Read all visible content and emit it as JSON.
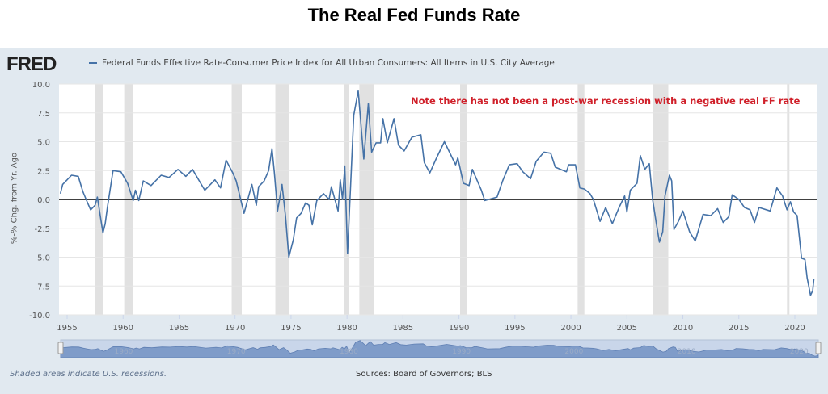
{
  "title": "The Real Fed Funds Rate",
  "logo": "FRED",
  "legend_label": "Federal Funds Effective Rate-Consumer Price Index for All Urban Consumers: All Items in U.S. City Average",
  "footer": {
    "recessions_note": "Shaded areas indicate U.S. recessions.",
    "sources": "Sources: Board of Governors; BLS"
  },
  "colors": {
    "series": "#4572a7",
    "annotation": "#d0202a",
    "recession": "#e1e1e1",
    "zero_line": "#000000",
    "panel": "#e1e9f0"
  },
  "chart_data": {
    "type": "line",
    "ylabel": "%-% Chg. from Yr. Ago",
    "ylim": [
      -10,
      10
    ],
    "yticks": [
      "10.0",
      "7.5",
      "5.0",
      "2.5",
      "0.0",
      "-2.5",
      "-5.0",
      "-7.5",
      "-10.0"
    ],
    "xticks": [
      "1955",
      "1960",
      "1965",
      "1970",
      "1975",
      "1980",
      "1985",
      "1990",
      "1995",
      "2000",
      "2005",
      "2010",
      "2015",
      "2020"
    ],
    "navigator_ticks": [
      "1960",
      "1970",
      "1980",
      "1990",
      "2000",
      "2010",
      "2020"
    ],
    "grid": true,
    "annotation": "Note there has not been a post-war recession with a negative real FF rate",
    "recessions": [
      [
        1957.5,
        1958.2
      ],
      [
        1960.1,
        1960.9
      ],
      [
        1969.7,
        1970.6
      ],
      [
        1973.6,
        1974.8
      ],
      [
        1979.7,
        1980.2
      ],
      [
        1981.1,
        1982.4
      ],
      [
        1990.1,
        1990.7
      ],
      [
        2000.6,
        2001.2
      ],
      [
        2007.3,
        2008.7
      ],
      [
        2019.3,
        2019.5
      ]
    ],
    "series": [
      {
        "name": "Federal Funds Effective Rate-Consumer Price Index for All Urban Consumers: All Items in U.S. City Average",
        "x": [
          1954.4,
          1954.6,
          1955.4,
          1956.0,
          1956.4,
          1956.7,
          1957.1,
          1957.5,
          1957.7,
          1958.2,
          1958.4,
          1958.6,
          1959.1,
          1959.8,
          1960.4,
          1960.9,
          1961.1,
          1961.4,
          1961.8,
          1962.5,
          1963.4,
          1964.1,
          1964.9,
          1965.6,
          1966.2,
          1967.3,
          1968.2,
          1968.7,
          1969.2,
          1969.8,
          1970.1,
          1970.8,
          1971.5,
          1971.9,
          1972.1,
          1972.6,
          1973.0,
          1973.3,
          1973.5,
          1973.8,
          1974.2,
          1974.5,
          1974.8,
          1975.2,
          1975.5,
          1975.9,
          1976.3,
          1976.6,
          1976.9,
          1977.3,
          1977.9,
          1978.4,
          1978.6,
          1979.2,
          1979.4,
          1979.6,
          1979.8,
          1980.05,
          1980.6,
          1981.0,
          1981.5,
          1981.9,
          1982.2,
          1982.6,
          1983.0,
          1983.2,
          1983.6,
          1984.2,
          1984.6,
          1985.1,
          1985.8,
          1986.6,
          1986.9,
          1987.4,
          1988.0,
          1988.7,
          1989.7,
          1989.9,
          1990.4,
          1990.9,
          1991.2,
          1992.0,
          1992.3,
          1993.4,
          1993.9,
          1994.5,
          1995.2,
          1995.7,
          1996.4,
          1996.9,
          1997.6,
          1998.2,
          1998.6,
          1999.6,
          1999.8,
          2000.4,
          2000.8,
          2001.2,
          2001.7,
          2002.0,
          2002.6,
          2003.1,
          2003.7,
          2004.3,
          2004.8,
          2005.0,
          2005.3,
          2005.9,
          2006.2,
          2006.6,
          2007.0,
          2007.3,
          2007.6,
          2007.9,
          2008.2,
          2008.4,
          2008.8,
          2009.0,
          2009.2,
          2009.6,
          2010.0,
          2010.6,
          2011.1,
          2011.8,
          2012.5,
          2013.1,
          2013.6,
          2014.1,
          2014.4,
          2015.0,
          2015.5,
          2016.0,
          2016.4,
          2016.8,
          2017.8,
          2018.4,
          2018.9,
          2019.3,
          2019.6,
          2019.9,
          2020.2,
          2020.6,
          2020.9,
          2021.1,
          2021.4,
          2021.6,
          2021.7
        ],
        "y": [
          0.5,
          1.3,
          2.1,
          2.0,
          0.7,
          0.0,
          -0.9,
          -0.5,
          0.2,
          -2.9,
          -2.1,
          -0.7,
          2.5,
          2.4,
          1.4,
          -0.1,
          0.8,
          -0.1,
          1.6,
          1.2,
          2.1,
          1.9,
          2.6,
          2.0,
          2.6,
          0.8,
          1.7,
          1.0,
          3.4,
          2.3,
          1.6,
          -1.2,
          1.3,
          -0.5,
          1.1,
          1.6,
          2.5,
          4.4,
          2.4,
          -1.0,
          1.3,
          -1.4,
          -5.0,
          -3.5,
          -1.6,
          -1.2,
          -0.3,
          -0.5,
          -2.2,
          -0.1,
          0.5,
          0.0,
          1.1,
          -1.0,
          1.7,
          0.0,
          2.9,
          -4.7,
          7.3,
          9.4,
          3.5,
          8.3,
          4.1,
          4.9,
          4.9,
          7.0,
          4.9,
          7.0,
          4.7,
          4.2,
          5.4,
          5.6,
          3.2,
          2.3,
          3.6,
          5.0,
          3.0,
          3.6,
          1.4,
          1.2,
          2.6,
          0.8,
          -0.1,
          0.2,
          1.6,
          3.0,
          3.1,
          2.4,
          1.8,
          3.3,
          4.1,
          4.0,
          2.8,
          2.4,
          3.0,
          3.0,
          1.0,
          0.9,
          0.5,
          0.0,
          -1.9,
          -0.7,
          -2.1,
          -0.7,
          0.3,
          -1.1,
          0.8,
          1.4,
          3.8,
          2.6,
          3.1,
          0.0,
          -1.9,
          -3.7,
          -2.8,
          0.3,
          2.1,
          1.6,
          -2.6,
          -1.9,
          -1.0,
          -2.8,
          -3.6,
          -1.3,
          -1.4,
          -0.8,
          -2.0,
          -1.5,
          0.4,
          0.0,
          -0.7,
          -0.9,
          -2.0,
          -0.7,
          -1.0,
          1.0,
          0.3,
          -0.9,
          -0.2,
          -1.1,
          -1.4,
          -5.1,
          -5.2,
          -6.8,
          -8.3,
          -7.9,
          -6.9
        ]
      }
    ]
  }
}
